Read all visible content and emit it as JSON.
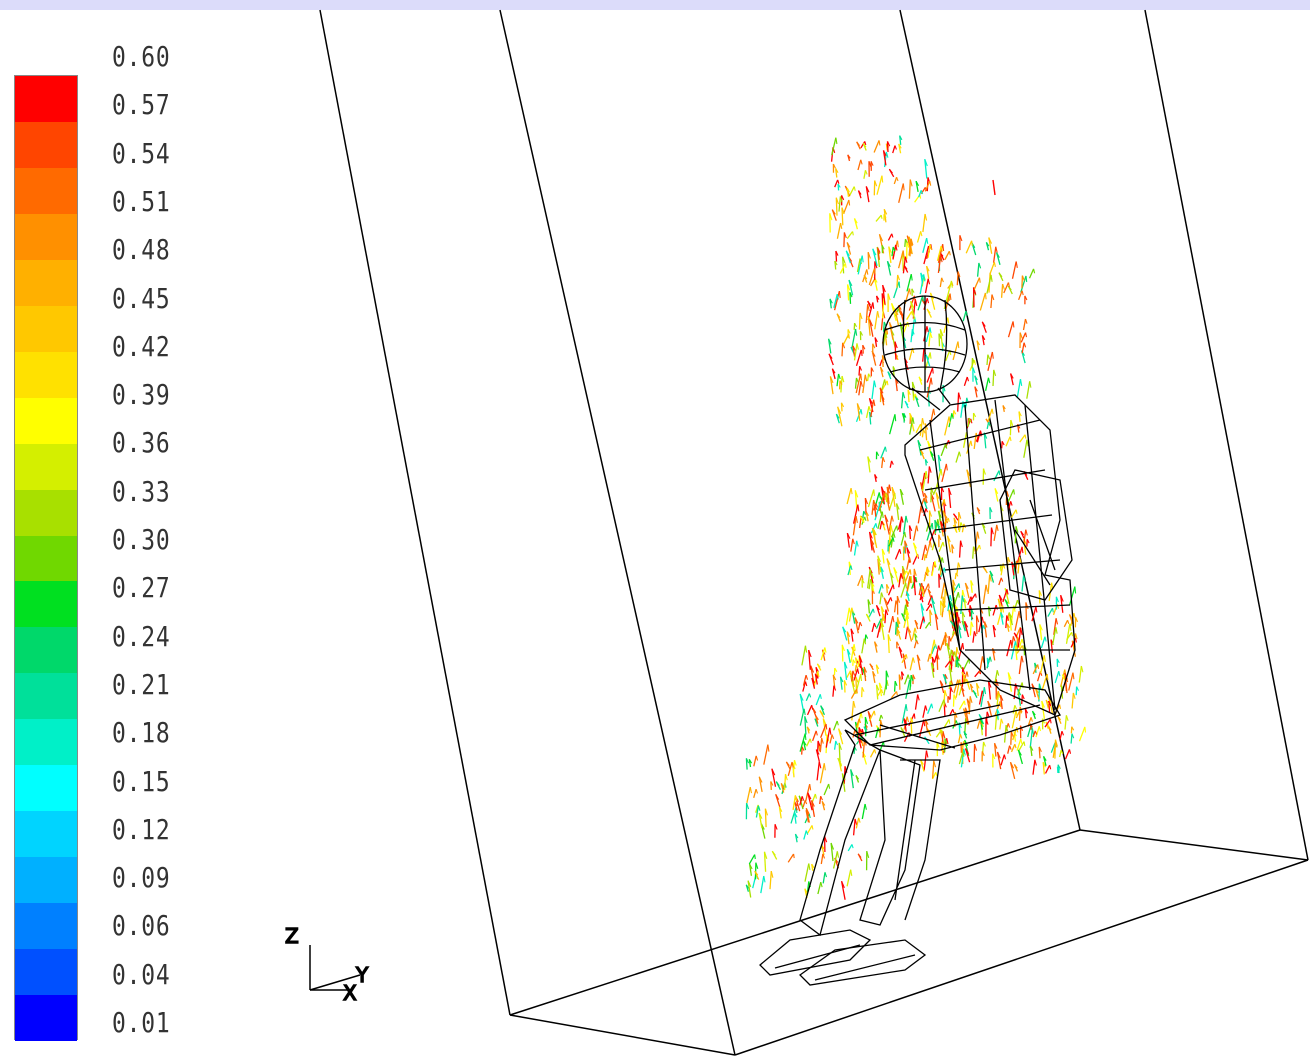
{
  "window": {
    "background": "#ffffff",
    "bar_color": "#dcdcfa"
  },
  "colorbar": {
    "labels": [
      "0.60",
      "0.57",
      "0.54",
      "0.51",
      "0.48",
      "0.45",
      "0.42",
      "0.39",
      "0.36",
      "0.33",
      "0.30",
      "0.27",
      "0.24",
      "0.21",
      "0.18",
      "0.15",
      "0.12",
      "0.09",
      "0.06",
      "0.04",
      "0.01"
    ],
    "colors": [
      "#ff0000",
      "#ff4500",
      "#ff6a00",
      "#ff9000",
      "#ffb000",
      "#ffc800",
      "#ffe100",
      "#ffff00",
      "#d4ef00",
      "#a8e000",
      "#70d800",
      "#00e020",
      "#00d86a",
      "#00e09a",
      "#00f0c8",
      "#00ffff",
      "#00d4ff",
      "#00b0ff",
      "#0080ff",
      "#0050ff",
      "#0000ff"
    ]
  },
  "axes": {
    "z": "Z",
    "x": "X",
    "y": "Y"
  },
  "scene": {
    "name": "seated human airflow vectors",
    "room_color": "#000000"
  }
}
